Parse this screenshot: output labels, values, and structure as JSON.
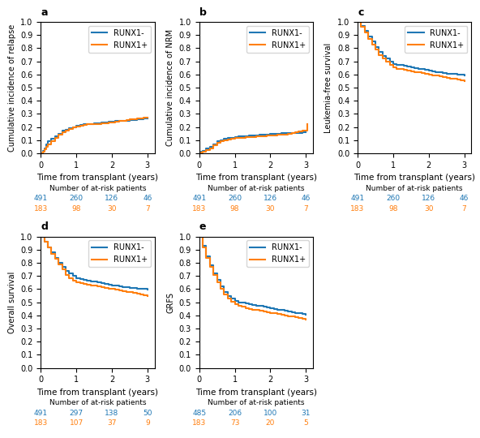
{
  "chart_data": [
    {
      "type": "step",
      "title": "a",
      "xlabel": "Time from transplant (years)",
      "ylabel": "Cumulative incidence of relapse",
      "xlim": [
        0,
        3.2
      ],
      "xticks": [
        0,
        1,
        2,
        3
      ],
      "ylim": [
        0,
        1
      ],
      "yticks": [
        {
          "value": 0,
          "label": "0.0"
        },
        0.1,
        0.2,
        0.3,
        0.4,
        0.5,
        0.6,
        0.7,
        0.8,
        0.9,
        {
          "value": 1,
          "label": "1.0"
        }
      ],
      "legend": "upper right",
      "at_risk_label": "Number of at-risk patients",
      "series": [
        {
          "name": "RUNX1-",
          "x": [
            0,
            0.05,
            0.1,
            0.15,
            0.2,
            0.3,
            0.4,
            0.5,
            0.6,
            0.7,
            0.8,
            0.9,
            1.0,
            1.1,
            1.2,
            1.3,
            1.4,
            1.5,
            1.6,
            1.7,
            1.8,
            1.9,
            2.0,
            2.1,
            2.2,
            2.3,
            2.4,
            2.5,
            2.6,
            2.7,
            2.8,
            2.9,
            3.0
          ],
          "values": [
            0,
            0.02,
            0.04,
            0.07,
            0.09,
            0.11,
            0.13,
            0.15,
            0.17,
            0.18,
            0.19,
            0.2,
            0.21,
            0.215,
            0.22,
            0.225,
            0.225,
            0.23,
            0.23,
            0.235,
            0.235,
            0.24,
            0.24,
            0.245,
            0.245,
            0.25,
            0.25,
            0.255,
            0.255,
            0.26,
            0.26,
            0.265,
            0.265
          ],
          "at_risk": [
            491,
            260,
            126,
            46
          ]
        },
        {
          "name": "RUNX1+",
          "x": [
            0,
            0.05,
            0.1,
            0.15,
            0.2,
            0.3,
            0.4,
            0.5,
            0.6,
            0.7,
            0.8,
            0.9,
            1.0,
            1.1,
            1.2,
            1.3,
            1.4,
            1.5,
            1.6,
            1.7,
            1.8,
            1.9,
            2.0,
            2.1,
            2.2,
            2.3,
            2.4,
            2.5,
            2.6,
            2.7,
            2.8,
            2.9,
            3.0
          ],
          "values": [
            0,
            0.01,
            0.03,
            0.05,
            0.07,
            0.09,
            0.12,
            0.14,
            0.16,
            0.175,
            0.185,
            0.195,
            0.205,
            0.21,
            0.215,
            0.22,
            0.22,
            0.225,
            0.225,
            0.23,
            0.23,
            0.235,
            0.235,
            0.24,
            0.245,
            0.25,
            0.255,
            0.26,
            0.262,
            0.265,
            0.268,
            0.27,
            0.27
          ],
          "at_risk": [
            183,
            98,
            30,
            7
          ]
        }
      ]
    },
    {
      "type": "step",
      "title": "b",
      "xlabel": "Time from transplant (years)",
      "ylabel": "Cumulative incidence of NRM",
      "xlim": [
        0,
        3.2
      ],
      "xticks": [
        0,
        1,
        2,
        3
      ],
      "ylim": [
        0,
        1
      ],
      "yticks": [
        {
          "value": 0,
          "label": "0.0"
        },
        0.1,
        0.2,
        0.3,
        0.4,
        0.5,
        0.6,
        0.7,
        0.8,
        0.9,
        {
          "value": 1,
          "label": "1.0"
        }
      ],
      "legend": "upper right",
      "at_risk_label": "Number of at-risk patients",
      "series": [
        {
          "name": "RUNX1-",
          "x": [
            0,
            0.05,
            0.1,
            0.2,
            0.3,
            0.4,
            0.5,
            0.6,
            0.7,
            0.8,
            0.9,
            1.0,
            1.1,
            1.2,
            1.3,
            1.4,
            1.5,
            1.6,
            1.7,
            1.8,
            1.9,
            2.0,
            2.1,
            2.2,
            2.3,
            2.4,
            2.5,
            2.6,
            2.7,
            2.8,
            2.9,
            3.0
          ],
          "values": [
            0,
            0.01,
            0.02,
            0.04,
            0.05,
            0.07,
            0.09,
            0.1,
            0.11,
            0.115,
            0.12,
            0.125,
            0.128,
            0.13,
            0.132,
            0.134,
            0.136,
            0.138,
            0.14,
            0.142,
            0.144,
            0.146,
            0.148,
            0.15,
            0.152,
            0.153,
            0.154,
            0.155,
            0.156,
            0.157,
            0.158,
            0.16
          ],
          "at_risk": [
            491,
            260,
            126,
            46
          ]
        },
        {
          "name": "RUNX1+",
          "x": [
            0,
            0.05,
            0.1,
            0.2,
            0.3,
            0.4,
            0.5,
            0.6,
            0.7,
            0.8,
            0.9,
            1.0,
            1.1,
            1.2,
            1.3,
            1.4,
            1.5,
            1.6,
            1.7,
            1.8,
            1.9,
            2.0,
            2.1,
            2.2,
            2.5,
            2.6,
            2.7,
            2.8,
            2.9,
            3.0,
            3.05
          ],
          "values": [
            0,
            0.005,
            0.01,
            0.025,
            0.04,
            0.06,
            0.08,
            0.09,
            0.1,
            0.105,
            0.11,
            0.115,
            0.118,
            0.12,
            0.122,
            0.124,
            0.126,
            0.128,
            0.13,
            0.132,
            0.134,
            0.136,
            0.138,
            0.14,
            0.15,
            0.155,
            0.16,
            0.165,
            0.17,
            0.175,
            0.22
          ],
          "at_risk": [
            183,
            98,
            30,
            7
          ]
        }
      ]
    },
    {
      "type": "step",
      "title": "c",
      "xlabel": "Time from transplant (years)",
      "ylabel": "Leukemia-free survival",
      "xlim": [
        0,
        3.2
      ],
      "xticks": [
        0,
        1,
        2,
        3
      ],
      "ylim": [
        0,
        1
      ],
      "yticks": [
        {
          "value": 0,
          "label": "0.0"
        },
        0.1,
        0.2,
        0.3,
        0.4,
        0.5,
        0.6,
        0.7,
        0.8,
        0.9,
        {
          "value": 1,
          "label": "1.0"
        }
      ],
      "legend": "upper right",
      "at_risk_label": "Number of at-risk patients",
      "series": [
        {
          "name": "RUNX1-",
          "x": [
            0,
            0.1,
            0.2,
            0.3,
            0.4,
            0.5,
            0.6,
            0.7,
            0.8,
            0.9,
            1.0,
            1.1,
            1.2,
            1.3,
            1.4,
            1.5,
            1.6,
            1.7,
            1.8,
            1.9,
            2.0,
            2.1,
            2.2,
            2.3,
            2.4,
            2.5,
            2.6,
            2.7,
            2.8,
            2.9,
            3.0
          ],
          "values": [
            1.0,
            0.97,
            0.93,
            0.89,
            0.85,
            0.81,
            0.77,
            0.74,
            0.72,
            0.7,
            0.68,
            0.675,
            0.67,
            0.665,
            0.66,
            0.655,
            0.65,
            0.645,
            0.64,
            0.635,
            0.63,
            0.625,
            0.62,
            0.615,
            0.61,
            0.607,
            0.605,
            0.602,
            0.6,
            0.598,
            0.595
          ],
          "at_risk": [
            491,
            260,
            126,
            46
          ]
        },
        {
          "name": "RUNX1+",
          "x": [
            0,
            0.1,
            0.2,
            0.3,
            0.4,
            0.5,
            0.6,
            0.7,
            0.8,
            0.9,
            1.0,
            1.1,
            1.2,
            1.3,
            1.4,
            1.5,
            1.6,
            1.7,
            1.8,
            1.9,
            2.0,
            2.1,
            2.2,
            2.3,
            2.4,
            2.5,
            2.6,
            2.7,
            2.8,
            2.9,
            3.0
          ],
          "values": [
            1.0,
            0.96,
            0.92,
            0.87,
            0.83,
            0.79,
            0.75,
            0.72,
            0.695,
            0.675,
            0.655,
            0.645,
            0.64,
            0.635,
            0.63,
            0.625,
            0.62,
            0.615,
            0.61,
            0.605,
            0.6,
            0.595,
            0.59,
            0.585,
            0.58,
            0.575,
            0.57,
            0.565,
            0.56,
            0.555,
            0.55
          ],
          "at_risk": [
            183,
            98,
            30,
            7
          ]
        }
      ]
    },
    {
      "type": "step",
      "title": "d",
      "xlabel": "Time from transplant (years)",
      "ylabel": "Overall survival",
      "xlim": [
        0,
        3.2
      ],
      "xticks": [
        0,
        1,
        2,
        3
      ],
      "ylim": [
        0,
        1
      ],
      "yticks": [
        {
          "value": 0,
          "label": "0.0"
        },
        0.1,
        0.2,
        0.3,
        0.4,
        0.5,
        0.6,
        0.7,
        0.8,
        0.9,
        {
          "value": 1,
          "label": "1.0"
        }
      ],
      "legend": "upper right",
      "at_risk_label": "Number of at-risk patients",
      "series": [
        {
          "name": "RUNX1-",
          "x": [
            0,
            0.1,
            0.2,
            0.3,
            0.4,
            0.5,
            0.6,
            0.7,
            0.8,
            0.9,
            1.0,
            1.1,
            1.2,
            1.3,
            1.4,
            1.5,
            1.6,
            1.7,
            1.8,
            1.9,
            2.0,
            2.1,
            2.2,
            2.3,
            2.4,
            2.5,
            2.6,
            2.7,
            2.8,
            2.9,
            3.0
          ],
          "values": [
            1.0,
            0.96,
            0.92,
            0.88,
            0.84,
            0.8,
            0.77,
            0.74,
            0.72,
            0.7,
            0.68,
            0.675,
            0.67,
            0.665,
            0.66,
            0.655,
            0.65,
            0.645,
            0.64,
            0.635,
            0.63,
            0.625,
            0.62,
            0.617,
            0.614,
            0.611,
            0.608,
            0.605,
            0.602,
            0.6,
            0.598
          ],
          "at_risk": [
            491,
            297,
            138,
            50
          ]
        },
        {
          "name": "RUNX1+",
          "x": [
            0,
            0.1,
            0.2,
            0.3,
            0.4,
            0.5,
            0.6,
            0.7,
            0.8,
            0.9,
            1.0,
            1.1,
            1.2,
            1.3,
            1.4,
            1.5,
            1.6,
            1.7,
            1.8,
            1.9,
            2.0,
            2.1,
            2.2,
            2.3,
            2.4,
            2.5,
            2.6,
            2.7,
            2.8,
            2.9,
            3.0
          ],
          "values": [
            1.0,
            0.96,
            0.92,
            0.87,
            0.83,
            0.79,
            0.75,
            0.71,
            0.68,
            0.665,
            0.65,
            0.645,
            0.64,
            0.635,
            0.63,
            0.625,
            0.62,
            0.615,
            0.61,
            0.605,
            0.6,
            0.595,
            0.59,
            0.585,
            0.58,
            0.575,
            0.57,
            0.565,
            0.56,
            0.555,
            0.55
          ],
          "at_risk": [
            183,
            107,
            37,
            9
          ]
        }
      ]
    },
    {
      "type": "step",
      "title": "e",
      "xlabel": "Time from transplant (years)",
      "ylabel": "GRFS",
      "xlim": [
        0,
        3.2
      ],
      "xticks": [
        0,
        1,
        2,
        3
      ],
      "ylim": [
        0,
        1
      ],
      "yticks": [
        {
          "value": 0,
          "label": "0.0"
        },
        0.1,
        0.2,
        0.3,
        0.4,
        0.5,
        0.6,
        0.7,
        0.8,
        0.9,
        {
          "value": 1,
          "label": "1.0"
        }
      ],
      "legend": "upper right",
      "at_risk_label": "Number of at-risk patients",
      "series": [
        {
          "name": "RUNX1-",
          "x": [
            0,
            0.1,
            0.2,
            0.3,
            0.4,
            0.5,
            0.6,
            0.7,
            0.8,
            0.9,
            1.0,
            1.1,
            1.2,
            1.3,
            1.4,
            1.5,
            1.6,
            1.7,
            1.8,
            1.9,
            2.0,
            2.1,
            2.2,
            2.3,
            2.4,
            2.5,
            2.6,
            2.7,
            2.8,
            2.9,
            3.0
          ],
          "values": [
            1.0,
            0.93,
            0.85,
            0.78,
            0.72,
            0.67,
            0.62,
            0.58,
            0.55,
            0.53,
            0.51,
            0.5,
            0.495,
            0.49,
            0.485,
            0.48,
            0.475,
            0.47,
            0.465,
            0.46,
            0.455,
            0.45,
            0.445,
            0.44,
            0.435,
            0.43,
            0.425,
            0.42,
            0.415,
            0.41,
            0.408
          ],
          "at_risk": [
            485,
            206,
            100,
            31
          ]
        },
        {
          "name": "RUNX1+",
          "x": [
            0,
            0.1,
            0.2,
            0.3,
            0.4,
            0.5,
            0.6,
            0.7,
            0.8,
            0.9,
            1.0,
            1.1,
            1.2,
            1.3,
            1.4,
            1.5,
            1.6,
            1.7,
            1.8,
            1.9,
            2.0,
            2.1,
            2.2,
            2.3,
            2.4,
            2.5,
            2.6,
            2.7,
            2.8,
            2.9,
            3.0
          ],
          "values": [
            1.0,
            0.92,
            0.84,
            0.77,
            0.71,
            0.65,
            0.6,
            0.56,
            0.53,
            0.505,
            0.485,
            0.475,
            0.465,
            0.455,
            0.45,
            0.445,
            0.44,
            0.435,
            0.43,
            0.425,
            0.42,
            0.415,
            0.41,
            0.405,
            0.4,
            0.395,
            0.39,
            0.385,
            0.38,
            0.375,
            0.37
          ],
          "at_risk": [
            183,
            73,
            20,
            5
          ]
        }
      ]
    }
  ]
}
